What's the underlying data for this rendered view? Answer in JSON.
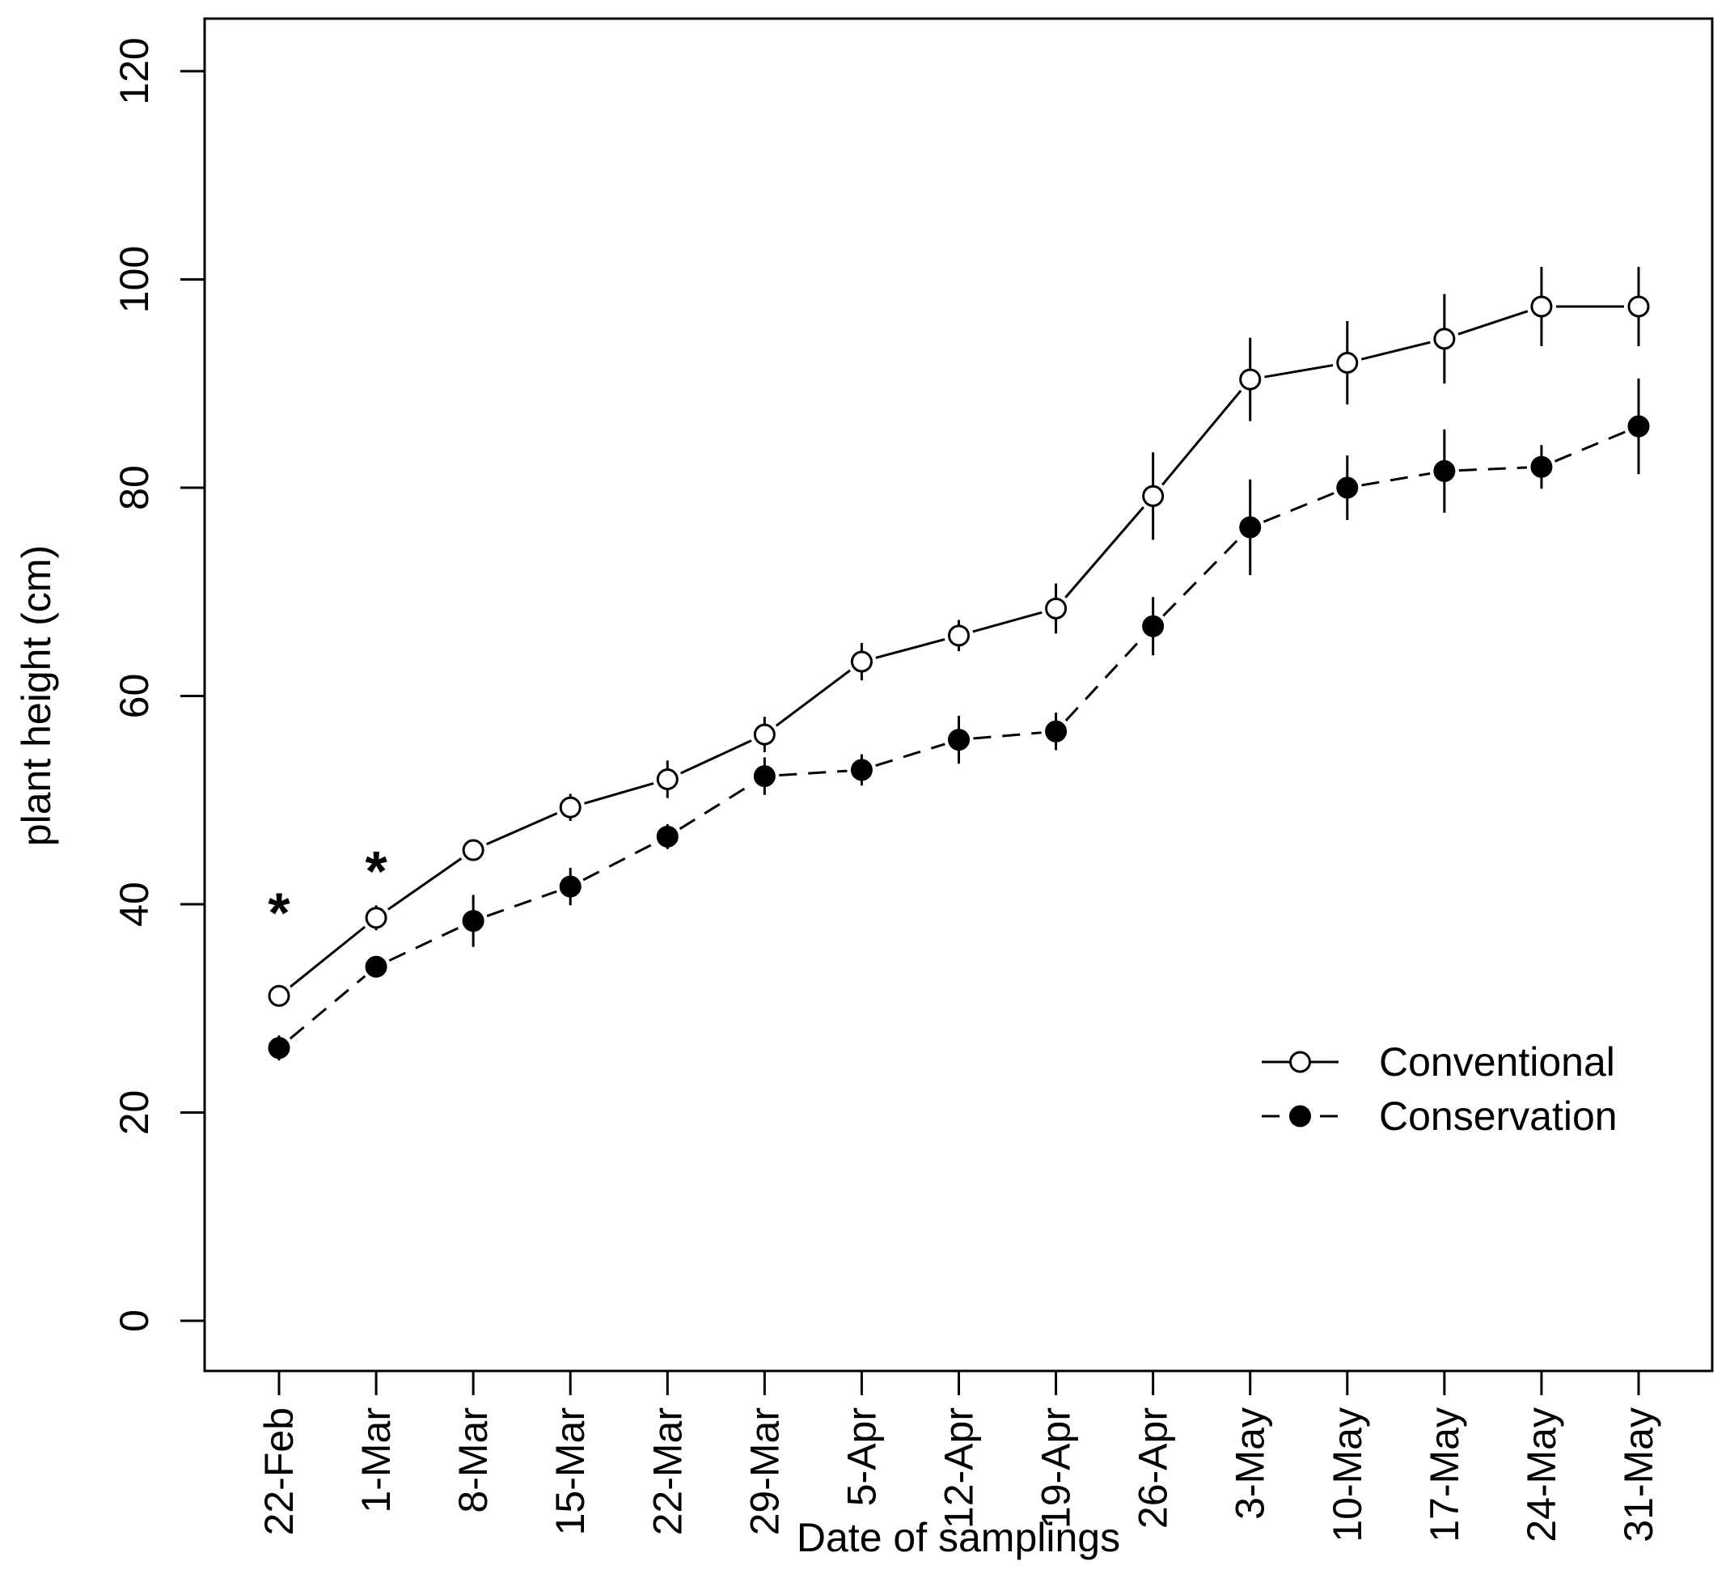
{
  "chart_data": {
    "type": "line",
    "title": "",
    "xlabel": "Date of samplings",
    "ylabel": "plant height (cm)",
    "ylim": [
      -5,
      125
    ],
    "yticks": [
      0,
      20,
      40,
      60,
      80,
      100,
      120
    ],
    "categories": [
      "22-Feb",
      "1-Mar",
      "8-Mar",
      "15-Mar",
      "22-Mar",
      "29-Mar",
      "5-Apr",
      "12-Apr",
      "19-Apr",
      "26-Apr",
      "3-May",
      "10-May",
      "17-May",
      "24-May",
      "31-May"
    ],
    "series": [
      {
        "name": "Conventional",
        "marker": "open-circle",
        "line": "solid",
        "values": [
          31.2,
          38.7,
          45.2,
          49.3,
          52.0,
          56.3,
          63.3,
          65.8,
          68.4,
          79.2,
          90.4,
          92.0,
          94.3,
          97.4,
          97.4
        ],
        "errors": [
          0.7,
          1.2,
          1.0,
          1.3,
          1.8,
          1.7,
          1.8,
          1.5,
          2.4,
          4.2,
          4.0,
          4.0,
          4.3,
          3.8,
          3.8
        ]
      },
      {
        "name": "Conservation",
        "marker": "filled-circle",
        "line": "dashed",
        "values": [
          26.2,
          34.0,
          38.4,
          41.7,
          46.5,
          52.3,
          52.9,
          55.8,
          56.6,
          66.7,
          76.2,
          80.0,
          81.6,
          82.0,
          85.9
        ],
        "errors": [
          1.2,
          0.8,
          2.5,
          1.8,
          1.2,
          1.8,
          1.5,
          2.3,
          1.8,
          2.8,
          4.6,
          3.1,
          4.0,
          2.1,
          4.6
        ]
      }
    ],
    "annotations": [
      {
        "text": "*",
        "category": "22-Feb",
        "y": 39.5
      },
      {
        "text": "*",
        "category": "1-Mar",
        "y": 43.5
      }
    ],
    "legend": {
      "placement": "bottom-right"
    },
    "grid": false
  }
}
